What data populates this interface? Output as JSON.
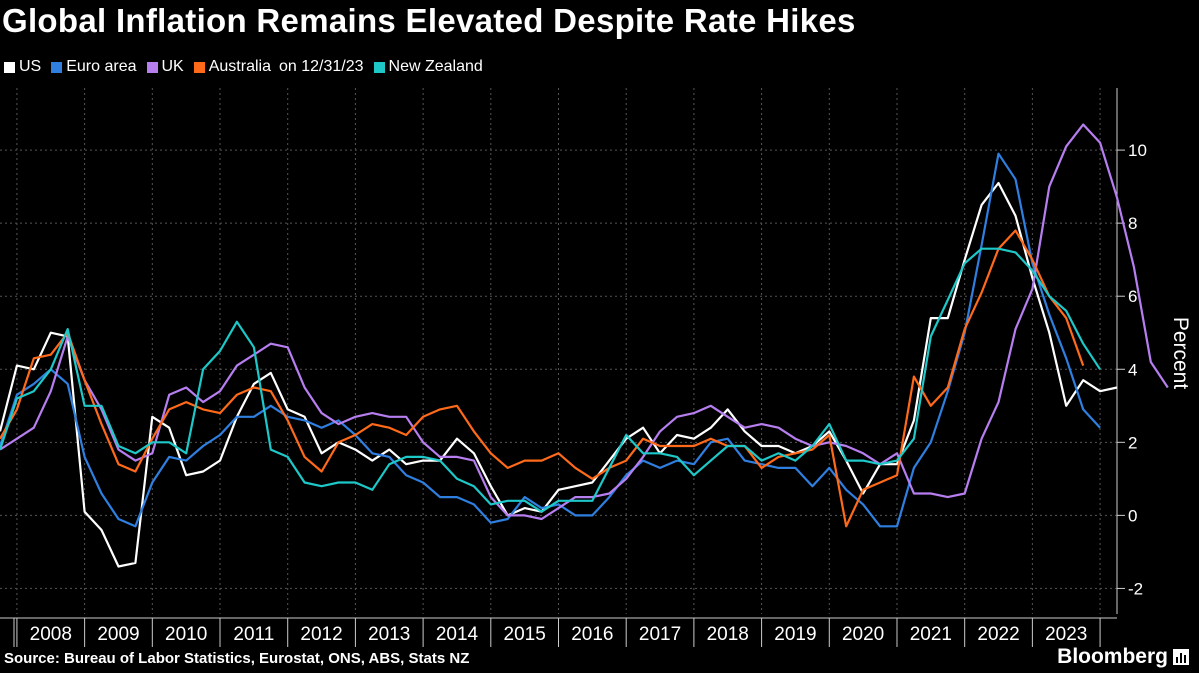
{
  "chart_data": {
    "type": "line",
    "title": "Global Inflation Remains Elevated Despite Rate Hikes",
    "ylabel": "Percent",
    "ylim": [
      -2.7,
      11.7
    ],
    "yticks": [
      -2,
      0,
      2,
      4,
      6,
      8,
      10
    ],
    "ytick_labels": [
      "-2",
      "0",
      "2",
      "4",
      "6",
      "8",
      "10"
    ],
    "xlim": [
      2007.75,
      2024.25
    ],
    "year_labels": [
      "2008",
      "2009",
      "2010",
      "2011",
      "2012",
      "2013",
      "2014",
      "2015",
      "2016",
      "2017",
      "2018",
      "2019",
      "2020",
      "2021",
      "2022",
      "2023"
    ],
    "grid": true,
    "legend_position": "top-left",
    "legend_note": "on 12/31/23",
    "source": "Source: Bureau of Labor Statistics, Eurostat, ONS, ABS, Stats NZ",
    "brand": "Bloomberg",
    "series": [
      {
        "name": "US",
        "color": "#ffffff",
        "start": 2007.75,
        "step": 0.25,
        "values": [
          2.3,
          4.1,
          4.0,
          5.0,
          4.9,
          0.1,
          -0.4,
          -1.4,
          -1.3,
          2.7,
          2.4,
          1.1,
          1.2,
          1.5,
          2.7,
          3.6,
          3.9,
          2.9,
          2.7,
          1.7,
          2.0,
          1.8,
          1.5,
          1.8,
          1.4,
          1.5,
          1.5,
          2.1,
          1.7,
          0.8,
          0.0,
          0.2,
          0.1,
          0.7,
          0.8,
          0.9,
          1.5,
          2.1,
          2.4,
          1.7,
          2.2,
          2.1,
          2.4,
          2.9,
          2.3,
          1.9,
          1.9,
          1.7,
          1.9,
          2.3,
          1.5,
          0.6,
          1.4,
          1.4,
          2.6,
          5.4,
          5.4,
          7.0,
          8.5,
          9.1,
          8.2,
          6.5,
          5.0,
          3.0,
          3.7,
          3.4,
          3.5
        ]
      },
      {
        "name": "Euro area",
        "color": "#2f7fe0",
        "start": 2007.75,
        "step": 0.25,
        "values": [
          1.9,
          3.3,
          3.6,
          4.0,
          3.6,
          1.6,
          0.6,
          -0.1,
          -0.3,
          0.9,
          1.6,
          1.5,
          1.9,
          2.2,
          2.7,
          2.7,
          3.0,
          2.7,
          2.6,
          2.4,
          2.6,
          2.2,
          1.7,
          1.6,
          1.1,
          0.9,
          0.5,
          0.5,
          0.3,
          -0.2,
          -0.1,
          0.5,
          0.2,
          0.3,
          0.0,
          0.0,
          0.5,
          1.1,
          1.5,
          1.3,
          1.5,
          1.4,
          2.0,
          2.1,
          1.5,
          1.4,
          1.3,
          1.3,
          0.8,
          1.3,
          0.7,
          0.3,
          -0.3,
          -0.3,
          1.3,
          2.0,
          3.4,
          5.0,
          7.4,
          9.9,
          9.2,
          6.9,
          5.5,
          4.3,
          2.9,
          2.4
        ]
      },
      {
        "name": "UK",
        "color": "#b77ef0",
        "start": 2007.75,
        "step": 0.25,
        "values": [
          1.8,
          2.1,
          2.4,
          3.4,
          4.9,
          3.7,
          2.9,
          1.8,
          1.5,
          1.7,
          3.3,
          3.5,
          3.1,
          3.4,
          4.1,
          4.4,
          4.7,
          4.6,
          3.5,
          2.8,
          2.5,
          2.7,
          2.8,
          2.7,
          2.7,
          2.0,
          1.6,
          1.6,
          1.5,
          0.5,
          0.0,
          0.0,
          -0.1,
          0.2,
          0.5,
          0.5,
          0.6,
          1.0,
          1.6,
          2.3,
          2.7,
          2.8,
          3.0,
          2.7,
          2.4,
          2.5,
          2.4,
          2.1,
          1.9,
          2.0,
          1.9,
          1.7,
          1.4,
          1.7,
          0.6,
          0.6,
          0.5,
          0.6,
          2.1,
          3.1,
          5.1,
          6.2,
          9.0,
          10.1,
          10.7,
          10.2,
          8.7,
          6.8,
          4.2,
          3.5
        ]
      },
      {
        "name": "Australia",
        "color": "#ff6a1a",
        "start": 2007.75,
        "step": 0.25,
        "values": [
          2.1,
          2.9,
          4.3,
          4.4,
          5.0,
          3.7,
          2.5,
          1.4,
          1.2,
          2.1,
          2.9,
          3.1,
          2.9,
          2.8,
          3.3,
          3.5,
          3.4,
          2.6,
          1.6,
          1.2,
          2.0,
          2.2,
          2.5,
          2.4,
          2.2,
          2.7,
          2.9,
          3.0,
          2.3,
          1.7,
          1.3,
          1.5,
          1.5,
          1.7,
          1.3,
          1.0,
          1.3,
          1.5,
          2.1,
          1.9,
          1.9,
          1.9,
          2.1,
          1.9,
          1.9,
          1.3,
          1.6,
          1.7,
          1.8,
          2.2,
          -0.3,
          0.7,
          0.9,
          1.1,
          3.8,
          3.0,
          3.5,
          5.1,
          6.1,
          7.3,
          7.8,
          7.0,
          6.0,
          5.4,
          4.1
        ]
      },
      {
        "name": "New Zealand",
        "color": "#1ec8c8",
        "start": 2007.75,
        "step": 0.25,
        "values": [
          1.8,
          3.2,
          3.4,
          4.0,
          5.1,
          3.0,
          3.0,
          1.9,
          1.7,
          2.0,
          2.0,
          1.7,
          4.0,
          4.5,
          5.3,
          4.6,
          1.8,
          1.6,
          0.9,
          0.8,
          0.9,
          0.9,
          0.7,
          1.4,
          1.6,
          1.6,
          1.5,
          1.0,
          0.8,
          0.3,
          0.4,
          0.4,
          0.1,
          0.4,
          0.4,
          0.4,
          1.3,
          2.2,
          1.7,
          1.7,
          1.6,
          1.1,
          1.5,
          1.9,
          1.9,
          1.5,
          1.7,
          1.5,
          1.9,
          2.5,
          1.5,
          1.5,
          1.4,
          1.5,
          2.1,
          4.9,
          5.9,
          6.9,
          7.3,
          7.3,
          7.2,
          6.7,
          6.0,
          5.6,
          4.7,
          4.0
        ]
      }
    ]
  }
}
